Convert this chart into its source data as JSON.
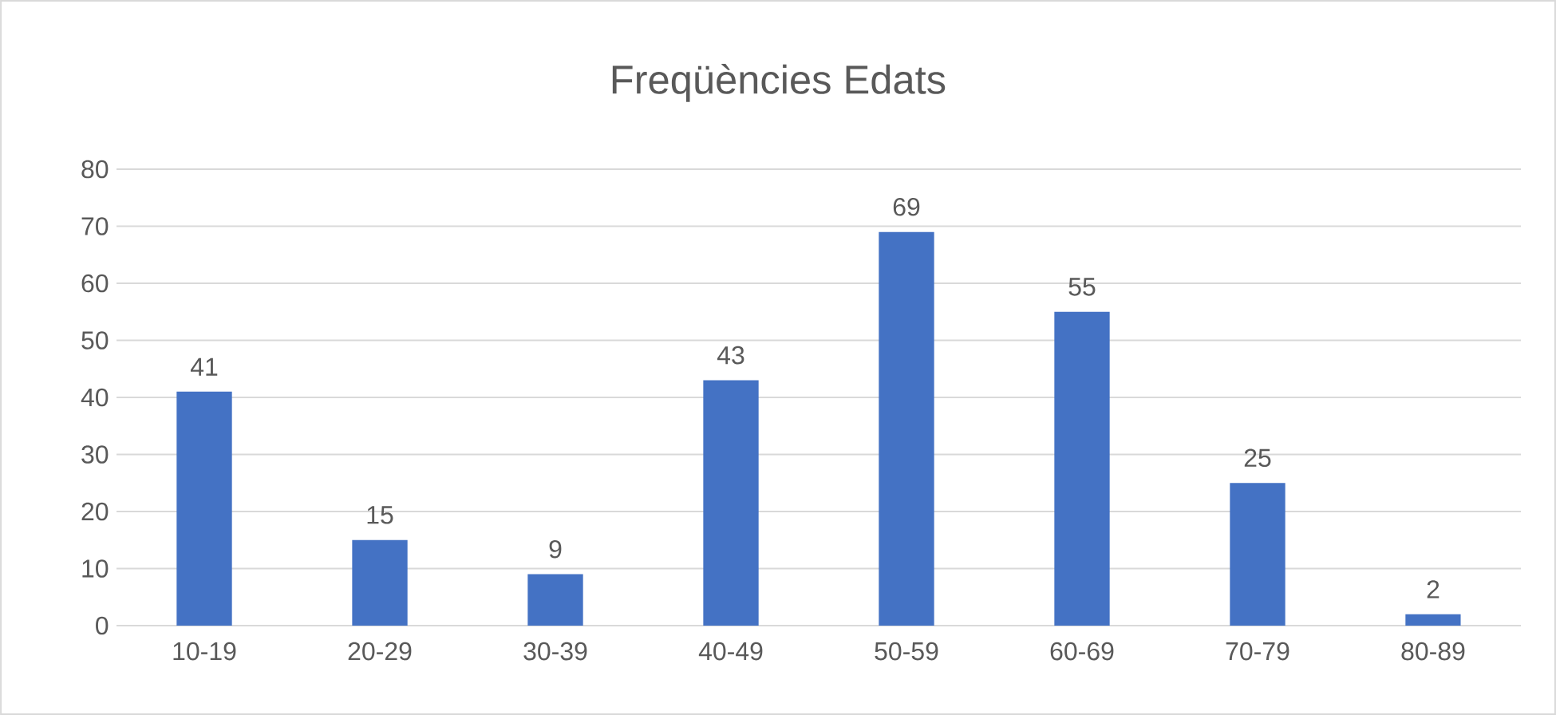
{
  "chart_data": {
    "type": "bar",
    "title": "Freqüències Edats",
    "categories": [
      "10-19",
      "20-29",
      "30-39",
      "40-49",
      "50-59",
      "60-69",
      "70-79",
      "80-89"
    ],
    "values": [
      41,
      15,
      9,
      43,
      69,
      55,
      25,
      2
    ],
    "color": "#4472c4",
    "ylim": [
      0,
      80
    ],
    "yticks": [
      0,
      10,
      20,
      30,
      40,
      50,
      60,
      70,
      80
    ],
    "grid": "y",
    "data_labels": true
  }
}
